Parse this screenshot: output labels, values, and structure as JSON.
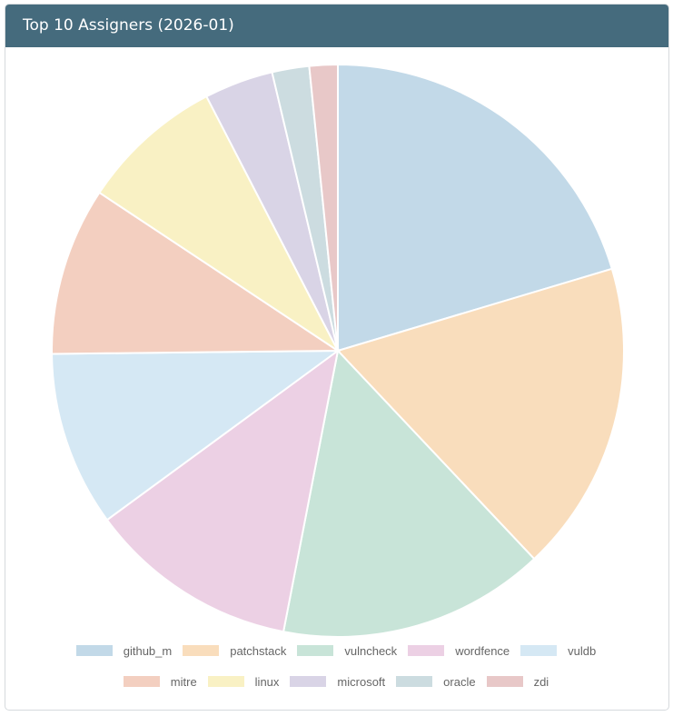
{
  "card": {
    "title": "Top 10 Assigners (2026-01)"
  },
  "chart_data": {
    "type": "pie",
    "title": "Top 10 Assigners (2026-01)",
    "unit": "percent (estimated)",
    "categories": [
      "github_m",
      "patchstack",
      "vulncheck",
      "wordfence",
      "vuldb",
      "mitre",
      "linux",
      "microsoft",
      "oracle",
      "zdi"
    ],
    "values": [
      20.4,
      17.6,
      15.1,
      11.9,
      9.9,
      9.5,
      8.1,
      3.9,
      2.1,
      1.6
    ],
    "colors": [
      "#c2d9e8",
      "#f9ddbc",
      "#c8e4d8",
      "#ecd0e4",
      "#d5e8f4",
      "#f3cfc0",
      "#f9f1c4",
      "#d9d4e6",
      "#ccdce0",
      "#e8c8c8"
    ],
    "legend_position": "bottom"
  }
}
